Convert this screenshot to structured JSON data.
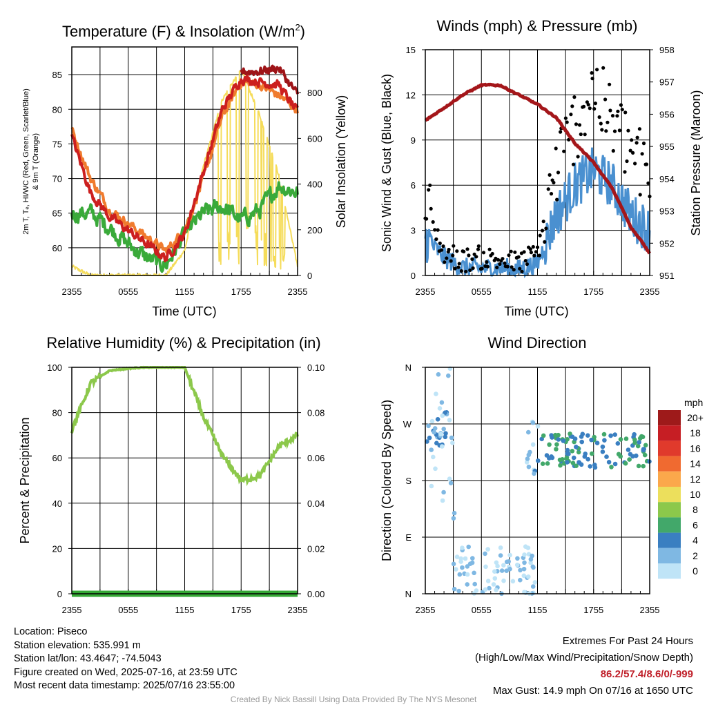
{
  "panels": {
    "temp": {
      "title_main": "Temperature (F) & Insolation (W/m",
      "title_sup": "2",
      "title_end": ")",
      "xlabel": "Time (UTC)",
      "ylabel_lines": [
        "2m T, Tₑ, HI/WC (Red, Green, Scarlet/Blue)",
        "& 9m T (Orange)"
      ],
      "ylabel_right": "Solar Insolation (Yellow)"
    },
    "wind": {
      "title": "Winds (mph) & Pressure (mb)",
      "xlabel": "Time (UTC)",
      "ylabel": "Sonic Wind & Gust (Blue, Black)",
      "ylabel_right": "Station Pressure (Maroon)"
    },
    "rh": {
      "title": "Relative Humidity (%) & Precipitation (in)",
      "ylabel": "Percent & Precipitation"
    },
    "dir": {
      "title": "Wind Direction",
      "ylabel": "Direction (Colored By Speed)",
      "legend_title": "mph"
    }
  },
  "info": {
    "location": "Location: Piseco",
    "elevation": "Station elevation: 535.991 m",
    "latlon": "Station lat/lon: 43.4647; -74.5043",
    "created": "Figure created on Wed, 2025-07-16, at 23:59 UTC",
    "recent": "Most recent data timestamp: 2025/07/16 23:55:00"
  },
  "extremes": {
    "title": "Extremes For Past 24 Hours",
    "subtitle": "(High/Low/Max Wind/Precipitation/Snow Depth)",
    "values": "86.2/57.4/8.6/0/-999",
    "gust": "Max Gust: 14.9 mph On 07/16 at 1650 UTC"
  },
  "credit": "Created By Nick Bassill Using Data Provided By The NYS Mesonet",
  "colors": {
    "temp_red": "#cc1f1f",
    "temp_dark": "#9e1418",
    "dewpoint_green": "#3aaa3a",
    "temp9m_orange": "#f07b2e",
    "solar_yellow": "#f5dc5a",
    "wind_blue": "#4a90d0",
    "gust_black": "#000000",
    "pressure_maroon": "#a4161a",
    "rh_green": "#8cc84b",
    "precip_green": "#36a836"
  },
  "chart_data": [
    {
      "type": "line",
      "title": "Temperature (F) & Insolation (W/m2)",
      "xlabel": "Time (UTC)",
      "ylabel": "2m T, Td, HI/WC (Red, Green, Scarlet/Blue) & 9m T (Orange)",
      "ylabel_right": "Solar Insolation (Yellow)",
      "x_ticks": [
        "2355",
        "0555",
        "1155",
        "1755",
        "2355"
      ],
      "y_ticks": [
        60,
        65,
        70,
        75,
        80,
        85
      ],
      "ylim": [
        56,
        89
      ],
      "y2_ticks": [
        0,
        200,
        400,
        600,
        800
      ],
      "y2lim": [
        0,
        1000
      ],
      "grid": true,
      "x": [
        "2355",
        "0155",
        "0355",
        "0555",
        "0755",
        "0955",
        "1155",
        "1355",
        "1555",
        "1755",
        "1955",
        "2155",
        "2355"
      ],
      "series": [
        {
          "name": "2m T (Red)",
          "axis": "left",
          "color": "#cc1f1f",
          "values": [
            76,
            68,
            64.5,
            62.5,
            60.5,
            58.5,
            62,
            71,
            80,
            84.5,
            84,
            83.5,
            79.5
          ]
        },
        {
          "name": "HI (Scarlet)",
          "axis": "left",
          "color": "#9e1418",
          "values": [
            null,
            null,
            null,
            null,
            null,
            null,
            null,
            null,
            null,
            85.5,
            85.5,
            86,
            82
          ]
        },
        {
          "name": "9m T (Orange)",
          "axis": "left",
          "color": "#f07b2e",
          "values": [
            77,
            70,
            65.5,
            63.5,
            61.5,
            59.5,
            62.5,
            70,
            79,
            84,
            83.5,
            82,
            80
          ]
        },
        {
          "name": "Td (Green)",
          "axis": "left",
          "color": "#3aaa3a",
          "values": [
            65,
            65,
            63,
            60.5,
            58.5,
            57.5,
            62,
            65,
            66,
            64,
            65.5,
            69,
            68
          ]
        },
        {
          "name": "Solar Insolation (Yellow)",
          "axis": "right",
          "color": "#f5dc5a",
          "values": [
            40,
            0,
            0,
            0,
            0,
            0,
            110,
            480,
            770,
            900,
            700,
            440,
            40
          ]
        }
      ]
    },
    {
      "type": "line",
      "title": "Winds (mph) & Pressure (mb)",
      "xlabel": "Time (UTC)",
      "ylabel": "Sonic Wind & Gust (Blue, Black)",
      "ylabel_right": "Station Pressure (Maroon)",
      "x_ticks": [
        "2355",
        "0555",
        "1155",
        "1755",
        "2355"
      ],
      "y_ticks": [
        0,
        3,
        6,
        9,
        12,
        15
      ],
      "ylim": [
        0,
        15
      ],
      "y2_ticks": [
        951,
        952,
        953,
        954,
        955,
        956,
        957,
        958
      ],
      "y2lim": [
        951,
        958
      ],
      "grid": true,
      "x": [
        "2355",
        "0155",
        "0355",
        "0555",
        "0755",
        "0955",
        "1155",
        "1355",
        "1555",
        "1755",
        "1955",
        "2155",
        "2355"
      ],
      "series": [
        {
          "name": "Sonic Wind (Blue)",
          "axis": "left",
          "color": "#4a90d0",
          "values": [
            2.5,
            1.2,
            0.5,
            0.5,
            0.5,
            0.4,
            0.8,
            4.0,
            6.0,
            7.0,
            6.0,
            4.0,
            3.0
          ]
        },
        {
          "name": "Gust (Black)",
          "axis": "left",
          "color": "#000000",
          "values": [
            4.5,
            1.5,
            1.0,
            1.2,
            1.0,
            0.8,
            1.5,
            7.0,
            10.0,
            12.5,
            10.0,
            8.5,
            6.0
          ]
        },
        {
          "name": "Station Pressure (Maroon)",
          "axis": "right",
          "color": "#a4161a",
          "values": [
            955.8,
            956.2,
            956.6,
            956.9,
            956.9,
            956.6,
            956.3,
            955.9,
            955.1,
            954.5,
            953.7,
            952.5,
            951.7
          ]
        }
      ]
    },
    {
      "type": "line",
      "title": "Relative Humidity (%) & Precipitation (in)",
      "ylabel": "Percent & Precipitation",
      "x_ticks": [
        "2355",
        "0555",
        "1155",
        "1755",
        "2355"
      ],
      "y_ticks": [
        0,
        20,
        40,
        60,
        80,
        100
      ],
      "ylim": [
        0,
        100
      ],
      "y2_ticks": [
        "0.00",
        "0.02",
        "0.04",
        "0.06",
        "0.08",
        "0.10"
      ],
      "y2lim": [
        0,
        0.1
      ],
      "grid": true,
      "x": [
        "2355",
        "0155",
        "0355",
        "0555",
        "0755",
        "0955",
        "1155",
        "1355",
        "1555",
        "1755",
        "1955",
        "2155",
        "2355"
      ],
      "series": [
        {
          "name": "Relative Humidity",
          "axis": "left",
          "color": "#8cc84b",
          "values": [
            72,
            93,
            98.5,
            99.5,
            100,
            100,
            100,
            78,
            61,
            50,
            52,
            65,
            70
          ]
        },
        {
          "name": "Precipitation",
          "axis": "right",
          "color": "#36a836",
          "values": [
            0,
            0,
            0,
            0,
            0,
            0,
            0,
            0,
            0,
            0,
            0,
            0,
            0
          ]
        }
      ]
    },
    {
      "type": "scatter",
      "title": "Wind Direction",
      "ylabel": "Direction (Colored By Speed)",
      "x_ticks": [
        "2355",
        "0555",
        "1155",
        "1755",
        "2355"
      ],
      "y_ticks": [
        "N",
        "E",
        "S",
        "W",
        "N"
      ],
      "ylim": [
        0,
        360
      ],
      "grid": true,
      "legend_title": "mph",
      "legend": [
        {
          "label": "20+",
          "color": "#9e1a1a"
        },
        {
          "label": "18",
          "color": "#c61e24"
        },
        {
          "label": "16",
          "color": "#e03a2c"
        },
        {
          "label": "14",
          "color": "#f06a30"
        },
        {
          "label": "12",
          "color": "#fba84b"
        },
        {
          "label": "10",
          "color": "#ecdf5c"
        },
        {
          "label": "8",
          "color": "#8cc84b"
        },
        {
          "label": "6",
          "color": "#42a86a"
        },
        {
          "label": "4",
          "color": "#3a7fc1"
        },
        {
          "label": "2",
          "color": "#7fb8e3"
        },
        {
          "label": "0",
          "color": "#bfe4f7"
        }
      ],
      "clusters": [
        {
          "hours": [
            0,
            2.4
          ],
          "dir": [
            235,
            290
          ],
          "speed": 3
        },
        {
          "hours": [
            0.6,
            3.2
          ],
          "dir": [
            100,
            360
          ],
          "speed": 0.5
        },
        {
          "hours": [
            3.0,
            11.8
          ],
          "dir": [
            0,
            75
          ],
          "speed": 1
        },
        {
          "hours": [
            10.8,
            12.2
          ],
          "dir": [
            190,
            280
          ],
          "speed": 1.5
        },
        {
          "hours": [
            12.0,
            24
          ],
          "dir": [
            200,
            255
          ],
          "speed": 5
        }
      ],
      "hours_range": [
        0,
        24
      ]
    }
  ]
}
